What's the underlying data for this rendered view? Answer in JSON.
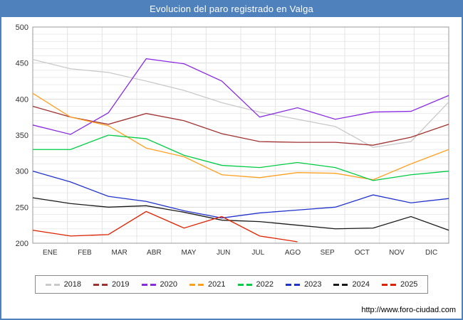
{
  "header": {
    "title": "Evolucion del paro registrado en Valga"
  },
  "footer": {
    "url": "http://www.foro-ciudad.com"
  },
  "chart_data": {
    "type": "line",
    "title": "Evolucion del paro registrado en Valga",
    "categories": [
      "ENE",
      "FEB",
      "MAR",
      "ABR",
      "MAY",
      "JUN",
      "JUL",
      "AGO",
      "SEP",
      "OCT",
      "NOV",
      "DIC"
    ],
    "ylabel": "",
    "xlabel": "",
    "ylim": [
      200,
      500
    ],
    "ytick_step": 50,
    "grid_step": 10,
    "grid": "on",
    "legend_position": "bottom",
    "colors": {
      "frame_blue": "#4f81bd",
      "grid_minor": "#ececec",
      "grid_major": "#dcdcdc",
      "plot_border": "#999999"
    },
    "series": [
      {
        "name": "2018",
        "color": "#c9c9c9",
        "values": [
          455,
          442,
          437,
          425,
          412,
          395,
          382,
          372,
          362,
          333,
          341,
          396
        ]
      },
      {
        "name": "2019",
        "color": "#a03232",
        "values": [
          390,
          375,
          365,
          380,
          370,
          352,
          341,
          340,
          340,
          336,
          347,
          365
        ]
      },
      {
        "name": "2020",
        "color": "#8a2be2",
        "values": [
          364,
          351,
          381,
          456,
          449,
          425,
          375,
          388,
          372,
          382,
          383,
          405
        ]
      },
      {
        "name": "2021",
        "color": "#ffa020",
        "values": [
          408,
          375,
          363,
          332,
          320,
          295,
          291,
          298,
          297,
          288,
          310,
          330
        ]
      },
      {
        "name": "2022",
        "color": "#00cc44",
        "values": [
          330,
          330,
          350,
          345,
          322,
          308,
          305,
          312,
          305,
          287,
          295,
          300
        ]
      },
      {
        "name": "2023",
        "color": "#2233cc",
        "values": [
          300,
          285,
          265,
          258,
          245,
          235,
          242,
          246,
          250,
          267,
          256,
          262
        ]
      },
      {
        "name": "2024",
        "color": "#1a1a1a",
        "values": [
          263,
          255,
          250,
          252,
          243,
          232,
          230,
          225,
          220,
          221,
          237,
          218
        ]
      },
      {
        "name": "2025",
        "color": "#dd2200",
        "values": [
          218,
          210,
          212,
          244,
          221,
          237,
          210,
          202
        ]
      }
    ]
  }
}
